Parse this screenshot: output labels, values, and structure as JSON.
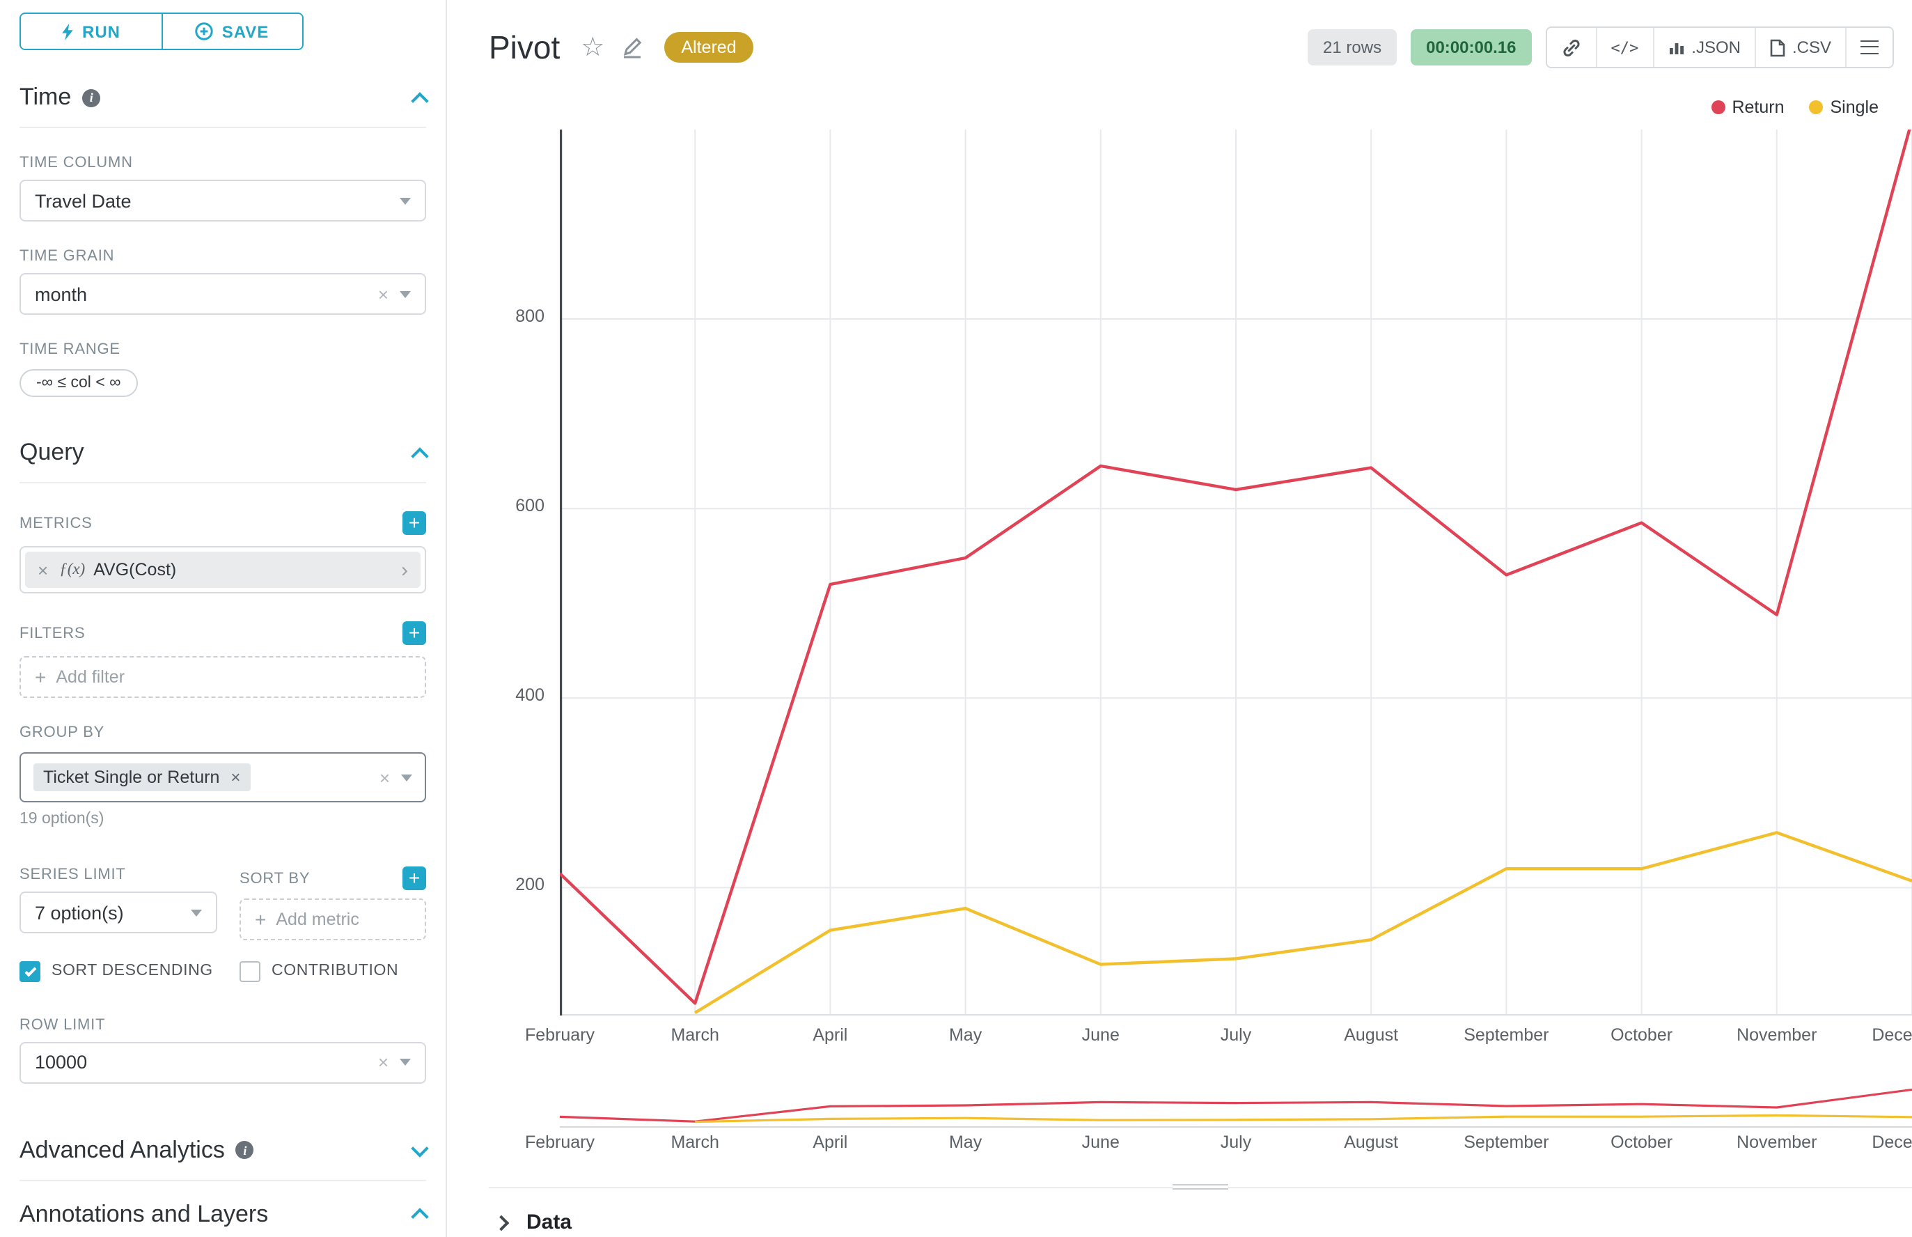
{
  "colors": {
    "accent": "#20a7c9",
    "altered_bg": "#c9a227",
    "timer_bg": "#a5d9b5",
    "timer_text": "#20663c",
    "rows_bg": "#e6e8ea",
    "rows_text": "#5a6268"
  },
  "toolbar": {
    "run": "RUN",
    "save": "SAVE"
  },
  "panel": {
    "time": {
      "title": "Time",
      "column_label": "TIME COLUMN",
      "column_value": "Travel Date",
      "grain_label": "TIME GRAIN",
      "grain_value": "month",
      "range_label": "TIME RANGE",
      "range_value": "-∞ ≤ col < ∞"
    },
    "query": {
      "title": "Query",
      "metrics_label": "METRICS",
      "metric_fx": "ƒ(x)",
      "metric_value": "AVG(Cost)",
      "filters_label": "FILTERS",
      "add_filter": "Add filter",
      "group_by_label": "GROUP BY",
      "group_by_value": "Ticket Single or Return",
      "group_by_hint": "19 option(s)",
      "series_limit_label": "SERIES LIMIT",
      "series_limit_value": "7 option(s)",
      "sort_by_label": "SORT BY",
      "add_metric": "Add metric",
      "sort_descending": "SORT DESCENDING",
      "contribution": "CONTRIBUTION",
      "row_limit_label": "ROW LIMIT",
      "row_limit_value": "10000"
    },
    "advanced": {
      "title": "Advanced Analytics"
    },
    "annotations": {
      "title": "Annotations and Layers"
    }
  },
  "header": {
    "title": "Pivot",
    "altered": "Altered",
    "rows": "21 rows",
    "timer": "00:00:00.16",
    "code": "</>",
    "json": ".JSON",
    "csv": ".CSV"
  },
  "footer": {
    "data_label": "Data"
  },
  "chart_data": {
    "type": "line",
    "x": [
      "February",
      "March",
      "April",
      "May",
      "June",
      "July",
      "August",
      "September",
      "October",
      "November",
      "December"
    ],
    "yticks": [
      200,
      400,
      600,
      800
    ],
    "ylim": [
      65,
      1000
    ],
    "grid": true,
    "legend_position": "top-right",
    "series": [
      {
        "name": "Return",
        "color": "#e04355",
        "values": [
          215,
          78,
          520,
          548,
          645,
          620,
          643,
          530,
          585,
          488,
          1010
        ]
      },
      {
        "name": "Single",
        "color": "#f2bf2d",
        "values": [
          null,
          68,
          155,
          178,
          119,
          125,
          145,
          220,
          220,
          258,
          207
        ]
      }
    ]
  }
}
